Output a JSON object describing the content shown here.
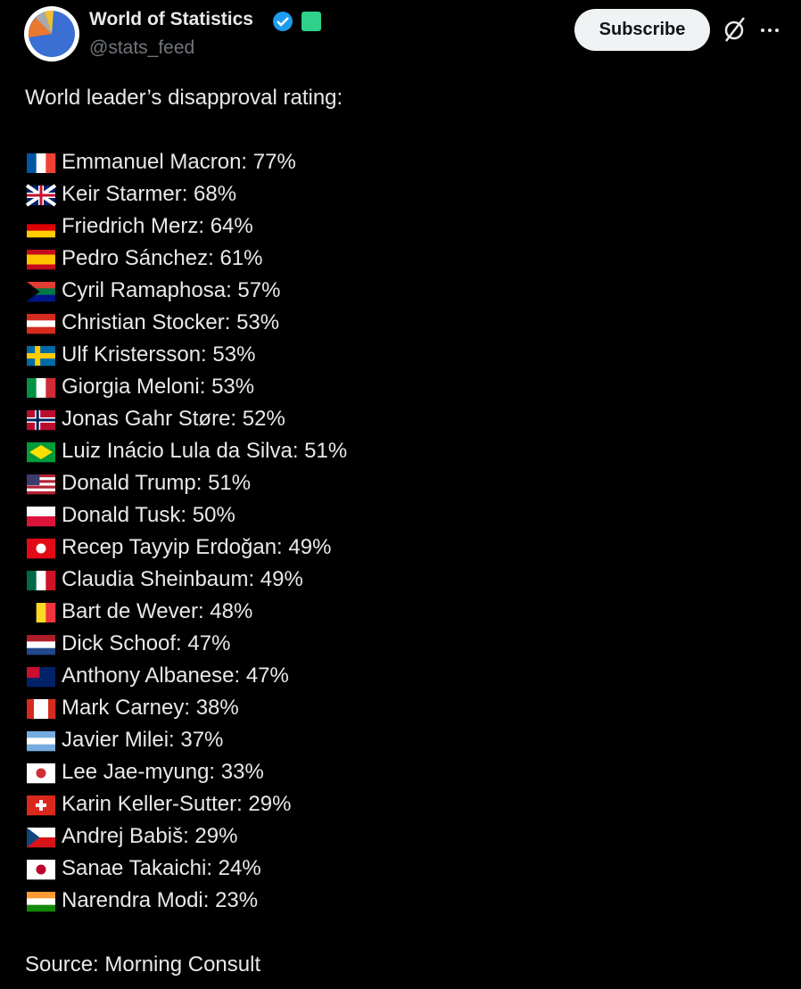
{
  "header": {
    "name": "World of Statistics",
    "handle": "@stats_feed",
    "button": "Subscribe"
  },
  "post": {
    "intro": "World leader’s disapproval rating:",
    "items": [
      "Emmanuel Macron: 77%",
      "Keir Starmer: 68%",
      "Friedrich Merz: 64%",
      "Pedro Sánchez: 61%",
      "Cyril Ramaphosa: 57%",
      "Christian Stocker: 53%",
      "Ulf Kristersson: 53%",
      "Giorgia Meloni: 53%",
      "Jonas Gahr Støre: 52%",
      "Luiz Inácio Lula da Silva: 51%",
      "Donald Trump: 51%",
      "Donald Tusk: 50%",
      "Recep Tayyip Erdoğan: 49%",
      "Claudia Sheinbaum: 49%",
      "Bart de Wever: 48%",
      "Dick Schoof: 47%",
      "Anthony Albanese: 47%",
      "Mark Carney: 38%",
      "Javier Milei: 37%",
      "Lee Jae-myung: 33%",
      "Karin Keller-Sutter: 29%",
      "Andrej Babiš: 29%",
      "Sanae Takaichi: 24%",
      "Narendra Modi: 23%"
    ],
    "source": "Source: Morning Consult"
  }
}
